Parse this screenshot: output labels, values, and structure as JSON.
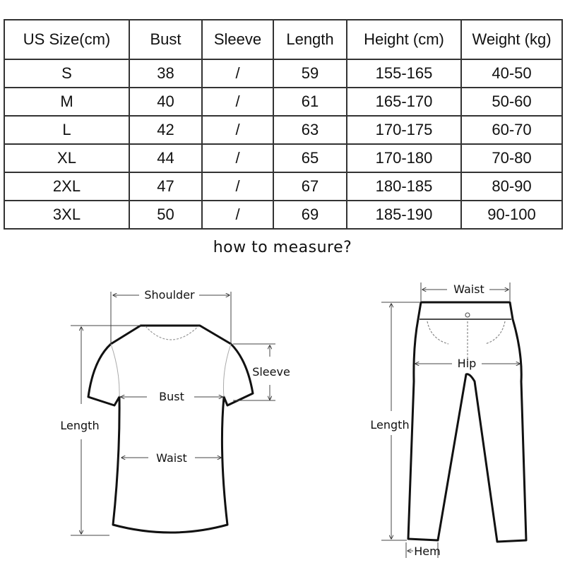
{
  "size_table": {
    "headers": [
      "US Size(cm)",
      "Bust",
      "Sleeve",
      "Length",
      "Height (cm)",
      "Weight (kg)"
    ],
    "rows": [
      [
        "S",
        "38",
        "/",
        "59",
        "155-165",
        "40-50"
      ],
      [
        "M",
        "40",
        "/",
        "61",
        "165-170",
        "50-60"
      ],
      [
        "L",
        "42",
        "/",
        "63",
        "170-175",
        "60-70"
      ],
      [
        "XL",
        "44",
        "/",
        "65",
        "170-180",
        "70-80"
      ],
      [
        "2XL",
        "47",
        "/",
        "67",
        "180-185",
        "80-90"
      ],
      [
        "3XL",
        "50",
        "/",
        "69",
        "185-190",
        "90-100"
      ]
    ]
  },
  "measure_title": "how to measure?",
  "shirt_labels": {
    "shoulder": "Shoulder",
    "sleeve": "Sleeve",
    "bust": "Bust",
    "length": "Length",
    "waist": "Waist"
  },
  "pants_labels": {
    "waist": "Waist",
    "hip": "Hip",
    "length": "Length",
    "hem": "Hem"
  }
}
